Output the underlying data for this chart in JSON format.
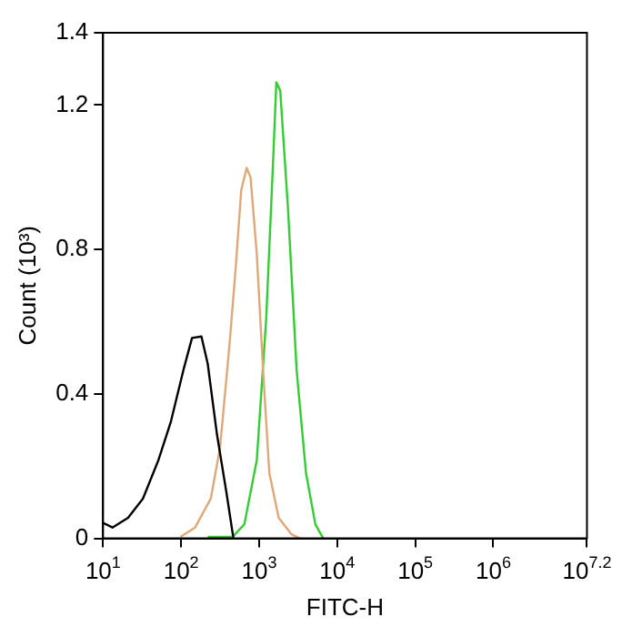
{
  "chart_data": {
    "type": "line",
    "xlabel": "FITC-H",
    "ylabel": "Count (10³)",
    "log": "x",
    "grid": false,
    "legend": false,
    "marker": "none",
    "line_style": "solid",
    "xlim": [
      10,
      15848932
    ],
    "xticks": [
      {
        "value": 10,
        "label": "10$^{1}$"
      },
      {
        "value": 100,
        "label": "10$^{2}$"
      },
      {
        "value": 1000,
        "label": "10$^{3}$"
      },
      {
        "value": 10000,
        "label": "10$^{4}$"
      },
      {
        "value": 100000,
        "label": "10$^{5}$"
      },
      {
        "value": 1000000,
        "label": "10$^{6}$"
      },
      {
        "value": 15848932,
        "label": "10$^{7.2}$"
      }
    ],
    "ylim": [
      0,
      1.4
    ],
    "yticks": [
      0,
      0.4,
      0.8,
      1.2,
      1.4
    ],
    "series": [
      {
        "color": "#000000",
        "x": [
          10,
          13.2,
          20.9,
          32.4,
          51.3,
          74.1,
          107,
          138,
          182,
          219,
          288,
          380,
          468
        ],
        "values": [
          0.043,
          0.03,
          0.057,
          0.11,
          0.217,
          0.324,
          0.466,
          0.555,
          0.559,
          0.484,
          0.288,
          0.128,
          0
        ]
      },
      {
        "color": "#e0a878",
        "x": [
          98,
          151,
          240,
          316,
          417,
          501,
          589,
          692,
          776,
          933,
          1122,
          1349,
          1778,
          2570,
          3311
        ],
        "values": [
          0.004,
          0.03,
          0.11,
          0.253,
          0.537,
          0.75,
          0.964,
          1.026,
          0.999,
          0.786,
          0.466,
          0.181,
          0.057,
          0.012,
          0
        ]
      },
      {
        "color": "#33cc33",
        "x": [
          219,
          457,
          646,
          933,
          1230,
          1479,
          1660,
          1862,
          2344,
          3020,
          3981,
          5248,
          6607
        ],
        "values": [
          0.004,
          0.004,
          0.039,
          0.217,
          0.608,
          1.0,
          1.263,
          1.24,
          0.911,
          0.466,
          0.181,
          0.039,
          0
        ]
      }
    ]
  }
}
